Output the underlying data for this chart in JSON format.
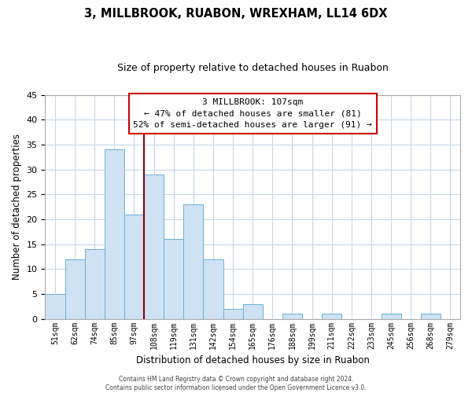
{
  "title": "3, MILLBROOK, RUABON, WREXHAM, LL14 6DX",
  "subtitle": "Size of property relative to detached houses in Ruabon",
  "xlabel": "Distribution of detached houses by size in Ruabon",
  "ylabel": "Number of detached properties",
  "bar_labels": [
    "51sqm",
    "62sqm",
    "74sqm",
    "85sqm",
    "97sqm",
    "108sqm",
    "119sqm",
    "131sqm",
    "142sqm",
    "154sqm",
    "165sqm",
    "176sqm",
    "188sqm",
    "199sqm",
    "211sqm",
    "222sqm",
    "233sqm",
    "245sqm",
    "256sqm",
    "268sqm",
    "279sqm"
  ],
  "bar_values": [
    5,
    12,
    14,
    34,
    21,
    29,
    16,
    23,
    12,
    2,
    3,
    0,
    1,
    0,
    1,
    0,
    0,
    1,
    0,
    1,
    0
  ],
  "bar_color": "#cfe2f3",
  "bar_edge_color": "#6baed6",
  "vline_index": 5,
  "vline_color": "#8b0000",
  "annotation_title": "3 MILLBROOK: 107sqm",
  "annotation_line1": "← 47% of detached houses are smaller (81)",
  "annotation_line2": "52% of semi-detached houses are larger (91) →",
  "annotation_box_color": "#ffffff",
  "annotation_box_edge": "#cc0000",
  "ylim": [
    0,
    45
  ],
  "yticks": [
    0,
    5,
    10,
    15,
    20,
    25,
    30,
    35,
    40,
    45
  ],
  "footer_line1": "Contains HM Land Registry data © Crown copyright and database right 2024.",
  "footer_line2": "Contains public sector information licensed under the Open Government Licence v3.0.",
  "bg_color": "#ffffff",
  "grid_color": "#c8d8e8"
}
